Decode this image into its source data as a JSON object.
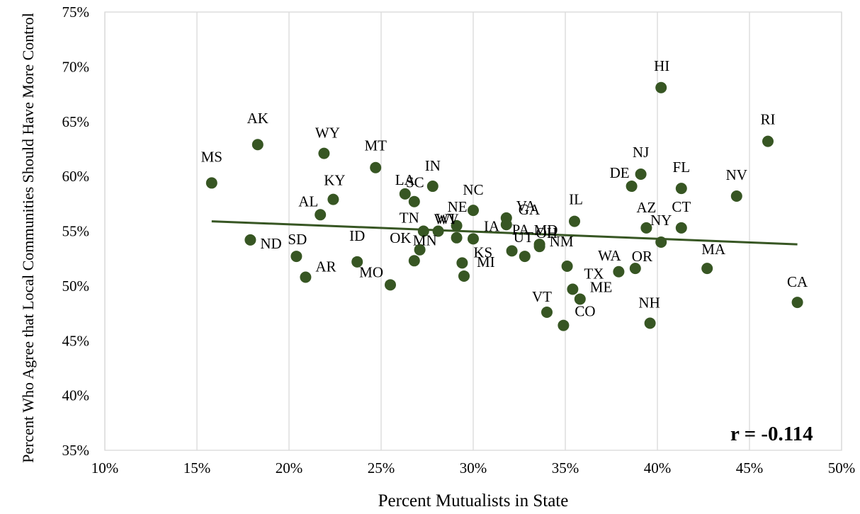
{
  "chart_data": {
    "type": "scatter",
    "title": "",
    "xlabel": "Percent Mutualists in State",
    "ylabel": "Percent Who Agree that Local Communities Should Have More Control",
    "xlim": [
      0.1,
      0.5
    ],
    "ylim": [
      0.35,
      0.75
    ],
    "x_ticks": [
      "10%",
      "15%",
      "20%",
      "25%",
      "30%",
      "35%",
      "40%",
      "45%",
      "50%"
    ],
    "y_ticks": [
      "35%",
      "40%",
      "45%",
      "50%",
      "55%",
      "60%",
      "65%",
      "70%",
      "75%"
    ],
    "grid": {
      "vertical": true,
      "horizontal": false
    },
    "annotation": "r = -0.114",
    "point_color": "#375623",
    "trendline_color": "#375623",
    "trendline": {
      "x": [
        0.158,
        0.476
      ],
      "y": [
        0.559,
        0.538
      ]
    },
    "points": [
      {
        "label": "MS",
        "x": 0.158,
        "y": 0.594
      },
      {
        "label": "AK",
        "x": 0.183,
        "y": 0.629
      },
      {
        "label": "ND",
        "x": 0.179,
        "y": 0.542
      },
      {
        "label": "SD",
        "x": 0.204,
        "y": 0.527
      },
      {
        "label": "AR",
        "x": 0.209,
        "y": 0.508
      },
      {
        "label": "AL",
        "x": 0.217,
        "y": 0.565
      },
      {
        "label": "WY",
        "x": 0.219,
        "y": 0.621
      },
      {
        "label": "KY",
        "x": 0.224,
        "y": 0.579
      },
      {
        "label": "ID",
        "x": 0.237,
        "y": 0.522
      },
      {
        "label": "MT",
        "x": 0.247,
        "y": 0.608
      },
      {
        "label": "MO",
        "x": 0.255,
        "y": 0.501
      },
      {
        "label": "LA",
        "x": 0.263,
        "y": 0.584
      },
      {
        "label": "SC",
        "x": 0.268,
        "y": 0.577
      },
      {
        "label": "OK",
        "x": 0.271,
        "y": 0.533
      },
      {
        "label": "MN",
        "x": 0.268,
        "y": 0.523
      },
      {
        "label": "TN",
        "x": 0.273,
        "y": 0.55
      },
      {
        "label": "IN",
        "x": 0.278,
        "y": 0.591
      },
      {
        "label": "WV",
        "x": 0.281,
        "y": 0.55
      },
      {
        "label": "NE",
        "x": 0.291,
        "y": 0.555
      },
      {
        "label": "WI",
        "x": 0.291,
        "y": 0.544
      },
      {
        "label": "KS",
        "x": 0.294,
        "y": 0.521
      },
      {
        "label": "MI",
        "x": 0.295,
        "y": 0.509
      },
      {
        "label": "IA",
        "x": 0.3,
        "y": 0.543
      },
      {
        "label": "NC",
        "x": 0.3,
        "y": 0.569
      },
      {
        "label": "VA",
        "x": 0.318,
        "y": 0.562
      },
      {
        "label": "GA",
        "x": 0.318,
        "y": 0.556
      },
      {
        "label": "PA",
        "x": 0.321,
        "y": 0.532
      },
      {
        "label": "UT",
        "x": 0.328,
        "y": 0.527
      },
      {
        "label": "MD",
        "x": 0.336,
        "y": 0.538
      },
      {
        "label": "OH",
        "x": 0.336,
        "y": 0.536
      },
      {
        "label": "VT",
        "x": 0.34,
        "y": 0.476
      },
      {
        "label": "CO",
        "x": 0.349,
        "y": 0.464
      },
      {
        "label": "NM",
        "x": 0.351,
        "y": 0.518
      },
      {
        "label": "TX",
        "x": 0.354,
        "y": 0.497
      },
      {
        "label": "IL",
        "x": 0.355,
        "y": 0.559
      },
      {
        "label": "ME",
        "x": 0.358,
        "y": 0.488
      },
      {
        "label": "WA",
        "x": 0.379,
        "y": 0.513
      },
      {
        "label": "DE",
        "x": 0.386,
        "y": 0.591
      },
      {
        "label": "OR",
        "x": 0.388,
        "y": 0.516
      },
      {
        "label": "NJ",
        "x": 0.391,
        "y": 0.602
      },
      {
        "label": "AZ",
        "x": 0.394,
        "y": 0.553
      },
      {
        "label": "NH",
        "x": 0.396,
        "y": 0.466
      },
      {
        "label": "HI",
        "x": 0.402,
        "y": 0.681
      },
      {
        "label": "NY",
        "x": 0.402,
        "y": 0.54
      },
      {
        "label": "FL",
        "x": 0.413,
        "y": 0.589
      },
      {
        "label": "CT",
        "x": 0.413,
        "y": 0.553
      },
      {
        "label": "MA",
        "x": 0.427,
        "y": 0.516
      },
      {
        "label": "NV",
        "x": 0.443,
        "y": 0.582
      },
      {
        "label": "RI",
        "x": 0.46,
        "y": 0.632
      },
      {
        "label": "CA",
        "x": 0.476,
        "y": 0.485
      }
    ]
  }
}
